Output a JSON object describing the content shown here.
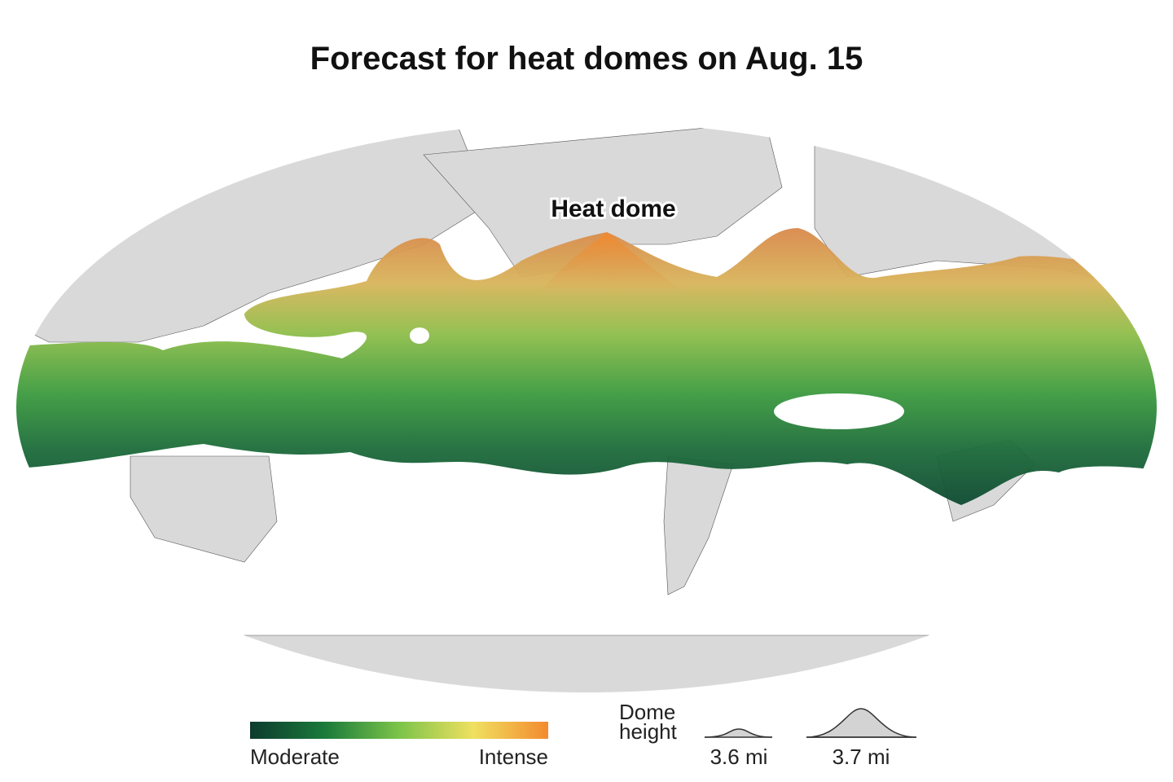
{
  "title": "Forecast for heat domes on Aug. 15",
  "annotation": "Heat dome",
  "legend": {
    "color_low": "Moderate",
    "color_high": "Intense",
    "height_title": "Dome height",
    "height_small": "3.6 mi",
    "height_large": "3.7 mi"
  }
}
